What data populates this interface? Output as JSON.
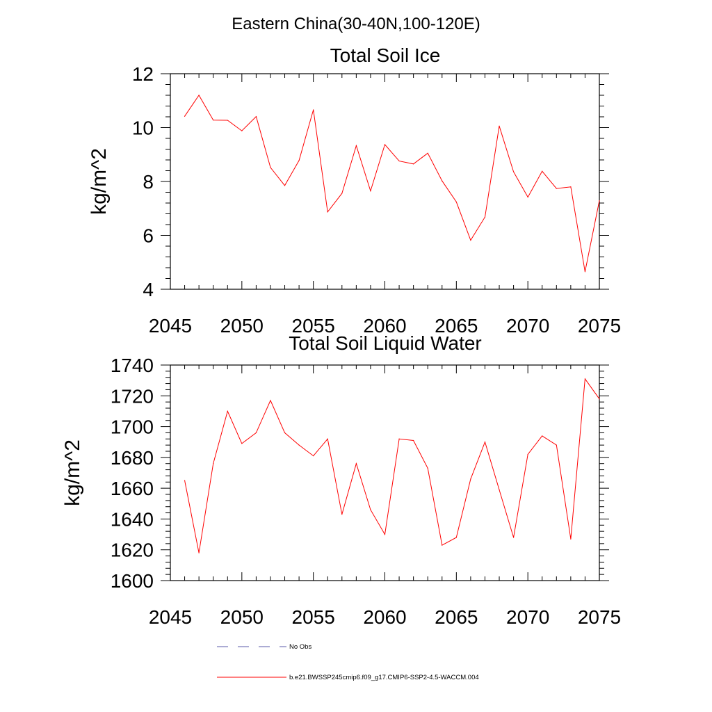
{
  "page_title": "Eastern China(30-40N,100-120E)",
  "chart_data": [
    {
      "type": "line",
      "title": "Total Soil Ice",
      "xlabel": "",
      "ylabel": "kg/m^2",
      "xlim": [
        2045,
        2075
      ],
      "ylim": [
        4,
        12
      ],
      "x_ticks": [
        2045,
        2050,
        2055,
        2060,
        2065,
        2070,
        2075
      ],
      "y_ticks": [
        4,
        6,
        8,
        10,
        12
      ],
      "grid": false,
      "series": [
        {
          "name": "b.e21.BWSSP245cmip6.f09_g17.CMIP6-SSP2-4.5-WACCM.004",
          "color": "#ff0000",
          "x": [
            2046,
            2047,
            2048,
            2049,
            2050,
            2051,
            2052,
            2053,
            2054,
            2055,
            2056,
            2057,
            2058,
            2059,
            2060,
            2061,
            2062,
            2063,
            2064,
            2065,
            2066,
            2067,
            2068,
            2069,
            2070,
            2071,
            2072,
            2073,
            2074,
            2075
          ],
          "values": [
            10.42,
            11.2,
            10.28,
            10.27,
            9.88,
            10.41,
            8.52,
            7.85,
            8.78,
            10.66,
            6.87,
            7.56,
            9.33,
            7.65,
            9.37,
            8.76,
            8.65,
            9.05,
            8.02,
            7.24,
            5.82,
            6.68,
            10.06,
            8.36,
            7.42,
            8.38,
            7.74,
            7.8,
            4.65,
            7.29
          ]
        }
      ]
    },
    {
      "type": "line",
      "title": "Total Soil Liquid Water",
      "xlabel": "",
      "ylabel": "kg/m^2",
      "xlim": [
        2045,
        2075
      ],
      "ylim": [
        1600,
        1740
      ],
      "x_ticks": [
        2045,
        2050,
        2055,
        2060,
        2065,
        2070,
        2075
      ],
      "y_ticks": [
        1600,
        1620,
        1640,
        1660,
        1680,
        1700,
        1720,
        1740
      ],
      "grid": false,
      "series": [
        {
          "name": "b.e21.BWSSP245cmip6.f09_g17.CMIP6-SSP2-4.5-WACCM.004",
          "color": "#ff0000",
          "x": [
            2046,
            2047,
            2048,
            2049,
            2050,
            2051,
            2052,
            2053,
            2054,
            2055,
            2056,
            2057,
            2058,
            2059,
            2060,
            2061,
            2062,
            2063,
            2064,
            2065,
            2066,
            2067,
            2068,
            2069,
            2070,
            2071,
            2072,
            2073,
            2074,
            2075
          ],
          "values": [
            1665,
            1618,
            1676,
            1710,
            1689,
            1696,
            1717,
            1696,
            1688,
            1681,
            1692,
            1643,
            1676,
            1646,
            1630,
            1692,
            1691,
            1673,
            1623,
            1628,
            1666,
            1690,
            1659,
            1628,
            1682,
            1694,
            1688,
            1627,
            1731,
            1718
          ]
        }
      ]
    }
  ],
  "legend": {
    "placement": "bottom",
    "items": [
      {
        "label": "No Obs",
        "color": "#5a5aa8",
        "style": "dashed"
      },
      {
        "label": "b.e21.BWSSP245cmip6.f09_g17.CMIP6-SSP2-4.5-WACCM.004",
        "color": "#ff0000",
        "style": "solid"
      }
    ]
  }
}
